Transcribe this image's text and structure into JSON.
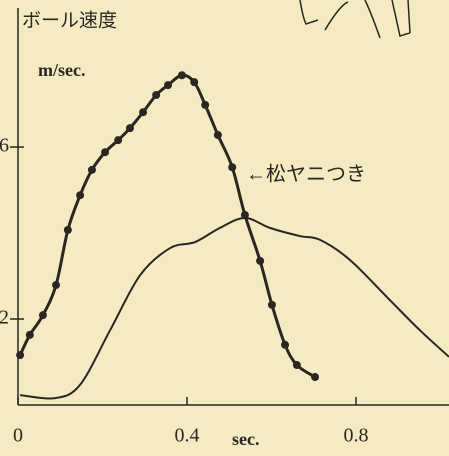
{
  "chart_data": {
    "type": "line",
    "title": "ボール速度",
    "y_label": "m/sec.",
    "x_label": "sec.",
    "annotation": "←松ヤニつき",
    "xlim": [
      0,
      1.02
    ],
    "ylim": [
      0,
      9.42
    ],
    "xticks": [
      0,
      0.4,
      0.8
    ],
    "yticks": [
      2,
      6
    ],
    "series": [
      {
        "color": "#2b2622",
        "markers": true,
        "x": [
          0.005,
          0.028,
          0.059,
          0.09,
          0.118,
          0.147,
          0.175,
          0.206,
          0.237,
          0.265,
          0.296,
          0.327,
          0.355,
          0.388,
          0.417,
          0.443,
          0.473,
          0.507,
          0.537,
          0.573,
          0.601,
          0.632,
          0.66,
          0.703
        ],
        "values": [
          1.16,
          1.63,
          2.09,
          2.79,
          4.07,
          4.88,
          5.47,
          5.88,
          6.16,
          6.44,
          6.81,
          7.21,
          7.44,
          7.67,
          7.51,
          6.98,
          6.28,
          5.53,
          4.42,
          3.35,
          2.33,
          1.4,
          0.93,
          0.65
        ]
      },
      {
        "color": "#2b2622",
        "markers": false,
        "x": [
          0.005,
          0.088,
          0.147,
          0.218,
          0.289,
          0.36,
          0.419,
          0.478,
          0.537,
          0.596,
          0.667,
          0.715,
          0.786,
          0.88,
          0.951,
          1.02
        ],
        "values": [
          0.23,
          0.16,
          0.47,
          1.74,
          3.02,
          3.65,
          3.79,
          4.12,
          4.35,
          4.12,
          3.93,
          3.84,
          3.37,
          2.44,
          1.74,
          1.12
        ]
      }
    ]
  }
}
